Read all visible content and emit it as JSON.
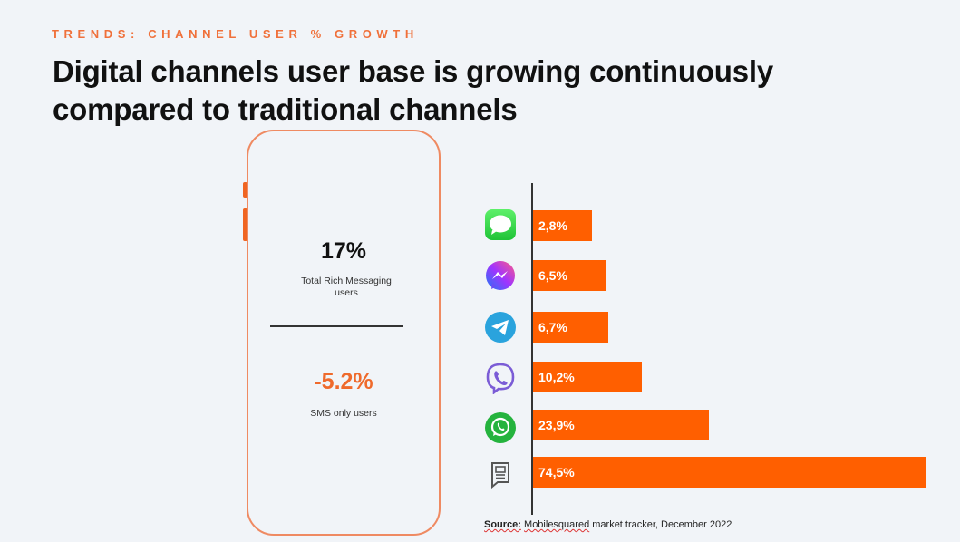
{
  "header": {
    "kicker": "TRENDS: CHANNEL USER % GROWTH",
    "title": "Digital channels user base is growing continuously compared to traditional channels"
  },
  "phone_panel": {
    "rich_messaging": {
      "value": "17%",
      "label": "Total Rich Messaging users"
    },
    "sms_only": {
      "value": "-5.2%",
      "label": "SMS only users"
    }
  },
  "colors": {
    "accent": "#ff5f00",
    "kicker": "#f0703a",
    "sms_value": "#ef6a2c"
  },
  "chart_data": {
    "type": "bar",
    "orientation": "horizontal",
    "title": "",
    "xlabel": "",
    "ylabel": "",
    "categories": [
      "iMessage",
      "Messenger",
      "Telegram",
      "Viber",
      "WhatsApp",
      "SMS"
    ],
    "icons": [
      "imessage-icon",
      "messenger-icon",
      "telegram-icon",
      "viber-icon",
      "whatsapp-icon",
      "sms-icon"
    ],
    "values": [
      2.8,
      6.5,
      6.7,
      10.2,
      23.9,
      74.5
    ],
    "labels": [
      "2,8%",
      "6,5%",
      "6,7%",
      "10,2%",
      "23,9%",
      "74,5%"
    ],
    "grid": false,
    "legend": "none"
  },
  "footer": {
    "source_label": "Source:",
    "source_word": "Mobilesquared",
    "source_rest": " market tracker, December 2022"
  }
}
